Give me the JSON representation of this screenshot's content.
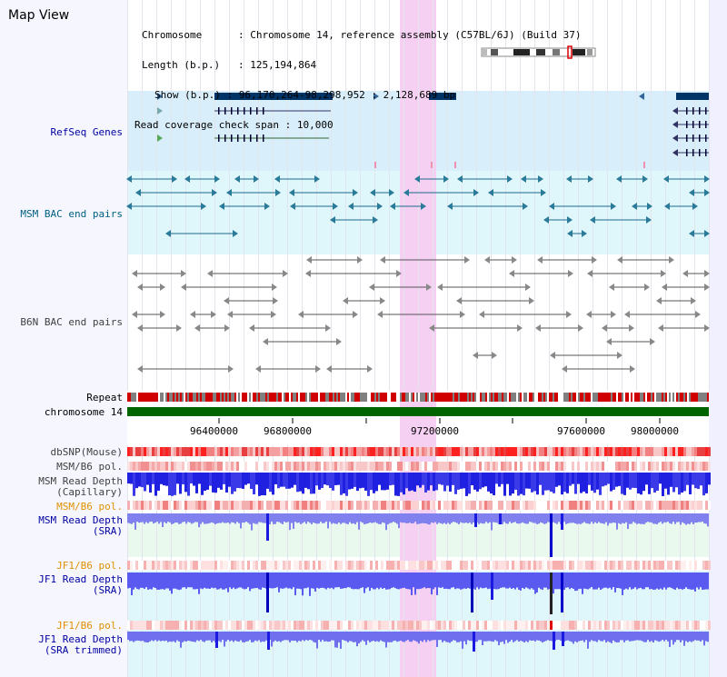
{
  "app": {
    "title": "Map View"
  },
  "info": {
    "chromosome_label": "Chromosome",
    "chromosome_value": "Chromosome 14, reference assembly (C57BL/6J) (Build 37)",
    "length_label": "Length (b.p.)",
    "length_value": "125,194,864",
    "show_label": "Show (b.p.)",
    "show_value": "96,170,264-98,298,952 : 2,128,689 bp",
    "span_label": "Read coverage check span",
    "span_value": "10,000"
  },
  "tracks": {
    "refseq": "RefSeq Genes",
    "msm_bac": "MSM BAC end pairs",
    "b6n_bac": "B6N BAC end pairs",
    "repeat": "Repeat",
    "chromosome": "chromosome 14",
    "dbsnp": "dbSNP(Mouse)",
    "msm_b6_pol_1": "MSM/B6 pol.",
    "msm_depth_cap_1": "MSM Read Depth",
    "msm_depth_cap_2": "(Capillary)",
    "msm_b6_pol_2": "MSM/B6 pol.",
    "msm_depth_sra_1": "MSM Read Depth",
    "msm_depth_sra_2": "(SRA)",
    "jf1_b6_pol_1": "JF1/B6 pol.",
    "jf1_depth_sra_1": "JF1 Read Depth",
    "jf1_depth_sra_2": "(SRA)",
    "jf1_b6_pol_2": "JF1/B6 pol.",
    "jf1_depth_trim_1": "JF1 Read Depth",
    "jf1_depth_trim_2": "(SRA trimmed)"
  },
  "axis": {
    "ticks": [
      "96400000",
      "96800000",
      "97200000",
      "97600000",
      "98000000"
    ]
  },
  "colors": {
    "label_black": "#000000",
    "label_blue": "#0000a0",
    "label_teal": "#006080",
    "label_gray": "#404040",
    "label_orange": "#e09000",
    "refseq_bg": "#d8eefa",
    "msm_bg": "#dff7fb",
    "highlight": "#f6d0f2",
    "chromosome_bar": "#006400"
  }
}
